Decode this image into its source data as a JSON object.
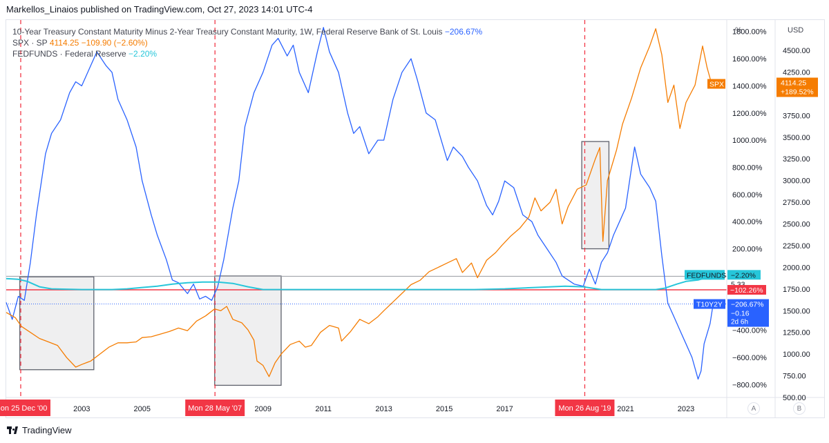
{
  "header": {
    "published_by": "Markellos_Linaios published on TradingView.com, Oct 27, 2023 14:01 UTC-4"
  },
  "legend": [
    {
      "label": "10-Year Treasury Constant Maturity Minus 2-Year Treasury Constant Maturity, 1W, Federal Reserve Bank of St. Louis",
      "value": "−206.67%",
      "color": "#2962ff"
    },
    {
      "label": "SPX · SP",
      "value": "4114.25  −109.90 (−2.60%)",
      "color": "#f57c00"
    },
    {
      "label": "FEDFUNDS · Federal Reserve",
      "value": "−2.20%",
      "color": "#26c6da"
    }
  ],
  "axes": {
    "pct_unit": "%",
    "usd_unit": "USD",
    "scale_a": "A",
    "scale_b": "B"
  },
  "footer": {
    "brand": "TradingView"
  },
  "chart_data": {
    "type": "line",
    "x_range": [
      2000.5,
      2024.35
    ],
    "x_ticks": [
      {
        "x": 2003.0,
        "label": "2003"
      },
      {
        "x": 2005.0,
        "label": "2005"
      },
      {
        "x": 2009.0,
        "label": "2009"
      },
      {
        "x": 2011.0,
        "label": "2011"
      },
      {
        "x": 2013.0,
        "label": "2013"
      },
      {
        "x": 2015.0,
        "label": "2015"
      },
      {
        "x": 2017.0,
        "label": "2017"
      },
      {
        "x": 2021.0,
        "label": "2021"
      },
      {
        "x": 2023.0,
        "label": "2023"
      }
    ],
    "pct_axis": {
      "range": [
        -895,
        1885
      ],
      "ticks": [
        1800,
        1600,
        1400,
        1200,
        1000,
        800,
        600,
        400,
        200,
        -400,
        -600,
        -800
      ],
      "suffix": ".00%"
    },
    "usd_axis": {
      "range": [
        500,
        4850
      ],
      "ticks": [
        4500,
        4250,
        4000,
        3750,
        3500,
        3250,
        3000,
        2750,
        2500,
        2250,
        2000,
        1750,
        1500,
        1250,
        1000,
        750,
        500
      ]
    },
    "date_markers": [
      {
        "x": 2000.98,
        "label": "Mon 25 Dec '00"
      },
      {
        "x": 2007.41,
        "label": "Mon 28 May '07"
      },
      {
        "x": 2019.65,
        "label": "Mon 26 Aug '19"
      }
    ],
    "hline_pct": -102.26,
    "fedfunds_level_pct": -2.2,
    "t10y2y_level_pct": -206.67,
    "highlight_boxes": [
      {
        "x0": 2000.95,
        "x1": 2003.4,
        "y0_usd": 820,
        "y1_usd": 1890
      },
      {
        "x0": 2007.4,
        "x1": 2009.6,
        "y0_usd": 640,
        "y1_usd": 1900
      },
      {
        "x0": 2019.55,
        "x1": 2020.45,
        "y0_pct": 200,
        "y1_pct": 990
      }
    ],
    "series": [
      {
        "name": "10-Year Treasury Constant Maturity Minus 2-Year Treasury Constant Maturity",
        "color": "#2962ff",
        "axis": "pct",
        "points": [
          [
            2000.5,
            -195
          ],
          [
            2000.7,
            -320
          ],
          [
            2000.9,
            -150
          ],
          [
            2001.1,
            -180
          ],
          [
            2001.3,
            100
          ],
          [
            2001.5,
            450
          ],
          [
            2001.8,
            900
          ],
          [
            2002.0,
            1050
          ],
          [
            2002.3,
            1150
          ],
          [
            2002.6,
            1350
          ],
          [
            2002.8,
            1430
          ],
          [
            2003.0,
            1400
          ],
          [
            2003.3,
            1550
          ],
          [
            2003.5,
            1650
          ],
          [
            2003.8,
            1550
          ],
          [
            2004.0,
            1500
          ],
          [
            2004.2,
            1300
          ],
          [
            2004.5,
            1150
          ],
          [
            2004.8,
            950
          ],
          [
            2005.0,
            700
          ],
          [
            2005.3,
            450
          ],
          [
            2005.5,
            300
          ],
          [
            2005.8,
            120
          ],
          [
            2006.0,
            -30
          ],
          [
            2006.2,
            -50
          ],
          [
            2006.5,
            -130
          ],
          [
            2006.7,
            -60
          ],
          [
            2006.9,
            -170
          ],
          [
            2007.1,
            -150
          ],
          [
            2007.3,
            -180
          ],
          [
            2007.5,
            -80
          ],
          [
            2007.7,
            120
          ],
          [
            2008.0,
            500
          ],
          [
            2008.2,
            700
          ],
          [
            2008.4,
            1100
          ],
          [
            2008.7,
            1350
          ],
          [
            2009.0,
            1500
          ],
          [
            2009.3,
            1700
          ],
          [
            2009.5,
            1750
          ],
          [
            2009.8,
            1620
          ],
          [
            2010.0,
            1700
          ],
          [
            2010.2,
            1500
          ],
          [
            2010.5,
            1350
          ],
          [
            2010.8,
            1650
          ],
          [
            2011.0,
            1830
          ],
          [
            2011.2,
            1650
          ],
          [
            2011.5,
            1500
          ],
          [
            2011.8,
            1200
          ],
          [
            2012.0,
            1050
          ],
          [
            2012.2,
            1100
          ],
          [
            2012.5,
            900
          ],
          [
            2012.8,
            1000
          ],
          [
            2013.0,
            1000
          ],
          [
            2013.3,
            1300
          ],
          [
            2013.6,
            1500
          ],
          [
            2013.9,
            1600
          ],
          [
            2014.1,
            1450
          ],
          [
            2014.4,
            1200
          ],
          [
            2014.7,
            1150
          ],
          [
            2014.9,
            1000
          ],
          [
            2015.1,
            850
          ],
          [
            2015.3,
            950
          ],
          [
            2015.6,
            880
          ],
          [
            2015.8,
            800
          ],
          [
            2016.1,
            700
          ],
          [
            2016.4,
            520
          ],
          [
            2016.6,
            450
          ],
          [
            2016.8,
            550
          ],
          [
            2017.0,
            700
          ],
          [
            2017.3,
            650
          ],
          [
            2017.6,
            450
          ],
          [
            2017.9,
            400
          ],
          [
            2018.1,
            300
          ],
          [
            2018.4,
            200
          ],
          [
            2018.7,
            100
          ],
          [
            2018.9,
            0
          ],
          [
            2019.1,
            -30
          ],
          [
            2019.3,
            -60
          ],
          [
            2019.6,
            -75
          ],
          [
            2019.8,
            50
          ],
          [
            2020.0,
            -60
          ],
          [
            2020.2,
            100
          ],
          [
            2020.4,
            170
          ],
          [
            2020.6,
            300
          ],
          [
            2020.8,
            400
          ],
          [
            2021.0,
            500
          ],
          [
            2021.3,
            950
          ],
          [
            2021.5,
            750
          ],
          [
            2021.8,
            650
          ],
          [
            2022.0,
            550
          ],
          [
            2022.2,
            150
          ],
          [
            2022.4,
            -200
          ],
          [
            2022.6,
            -300
          ],
          [
            2022.8,
            -400
          ],
          [
            2023.0,
            -500
          ],
          [
            2023.2,
            -600
          ],
          [
            2023.4,
            -760
          ],
          [
            2023.5,
            -700
          ],
          [
            2023.6,
            -500
          ],
          [
            2023.8,
            -350
          ],
          [
            2023.9,
            -206.67
          ]
        ]
      },
      {
        "name": "SPX",
        "color": "#f57c00",
        "axis": "usd",
        "points": [
          [
            2000.5,
            1480
          ],
          [
            2000.8,
            1420
          ],
          [
            2001.0,
            1320
          ],
          [
            2001.3,
            1250
          ],
          [
            2001.6,
            1180
          ],
          [
            2001.9,
            1140
          ],
          [
            2002.2,
            1100
          ],
          [
            2002.5,
            960
          ],
          [
            2002.8,
            850
          ],
          [
            2003.0,
            880
          ],
          [
            2003.3,
            920
          ],
          [
            2003.6,
            1000
          ],
          [
            2003.9,
            1080
          ],
          [
            2004.2,
            1130
          ],
          [
            2004.5,
            1130
          ],
          [
            2004.8,
            1140
          ],
          [
            2005.0,
            1190
          ],
          [
            2005.3,
            1200
          ],
          [
            2005.6,
            1230
          ],
          [
            2005.9,
            1260
          ],
          [
            2006.2,
            1300
          ],
          [
            2006.5,
            1270
          ],
          [
            2006.8,
            1380
          ],
          [
            2007.1,
            1440
          ],
          [
            2007.4,
            1520
          ],
          [
            2007.6,
            1500
          ],
          [
            2007.8,
            1550
          ],
          [
            2008.0,
            1400
          ],
          [
            2008.3,
            1360
          ],
          [
            2008.5,
            1280
          ],
          [
            2008.7,
            1160
          ],
          [
            2008.8,
            920
          ],
          [
            2009.0,
            870
          ],
          [
            2009.2,
            740
          ],
          [
            2009.4,
            900
          ],
          [
            2009.6,
            1000
          ],
          [
            2009.9,
            1110
          ],
          [
            2010.2,
            1150
          ],
          [
            2010.4,
            1080
          ],
          [
            2010.6,
            1100
          ],
          [
            2010.9,
            1250
          ],
          [
            2011.2,
            1330
          ],
          [
            2011.5,
            1300
          ],
          [
            2011.6,
            1150
          ],
          [
            2011.9,
            1260
          ],
          [
            2012.2,
            1400
          ],
          [
            2012.5,
            1350
          ],
          [
            2012.8,
            1430
          ],
          [
            2013.0,
            1500
          ],
          [
            2013.3,
            1600
          ],
          [
            2013.6,
            1700
          ],
          [
            2013.9,
            1800
          ],
          [
            2014.2,
            1850
          ],
          [
            2014.5,
            1950
          ],
          [
            2014.8,
            2000
          ],
          [
            2015.1,
            2050
          ],
          [
            2015.4,
            2100
          ],
          [
            2015.6,
            1940
          ],
          [
            2015.9,
            2050
          ],
          [
            2016.1,
            1880
          ],
          [
            2016.4,
            2080
          ],
          [
            2016.7,
            2170
          ],
          [
            2016.9,
            2250
          ],
          [
            2017.2,
            2360
          ],
          [
            2017.5,
            2450
          ],
          [
            2017.8,
            2580
          ],
          [
            2018.0,
            2800
          ],
          [
            2018.2,
            2650
          ],
          [
            2018.5,
            2750
          ],
          [
            2018.7,
            2900
          ],
          [
            2018.9,
            2500
          ],
          [
            2019.1,
            2700
          ],
          [
            2019.4,
            2900
          ],
          [
            2019.7,
            2950
          ],
          [
            2020.0,
            3250
          ],
          [
            2020.15,
            3380
          ],
          [
            2020.25,
            2300
          ],
          [
            2020.4,
            3000
          ],
          [
            2020.7,
            3350
          ],
          [
            2020.9,
            3650
          ],
          [
            2021.2,
            3950
          ],
          [
            2021.5,
            4300
          ],
          [
            2021.8,
            4550
          ],
          [
            2022.0,
            4750
          ],
          [
            2022.2,
            4450
          ],
          [
            2022.4,
            3900
          ],
          [
            2022.6,
            4100
          ],
          [
            2022.8,
            3600
          ],
          [
            2023.0,
            3900
          ],
          [
            2023.3,
            4100
          ],
          [
            2023.55,
            4550
          ],
          [
            2023.7,
            4300
          ],
          [
            2023.85,
            4114.25
          ]
        ]
      },
      {
        "name": "FEDFUNDS",
        "color": "#26c6da",
        "axis": "pct",
        "points": [
          [
            2000.5,
            -20
          ],
          [
            2000.9,
            -25
          ],
          [
            2001.2,
            -40
          ],
          [
            2001.6,
            -80
          ],
          [
            2002.0,
            -95
          ],
          [
            2003.0,
            -100
          ],
          [
            2004.0,
            -100
          ],
          [
            2004.5,
            -95
          ],
          [
            2005.0,
            -85
          ],
          [
            2005.5,
            -75
          ],
          [
            2006.0,
            -60
          ],
          [
            2006.5,
            -50
          ],
          [
            2007.0,
            -45
          ],
          [
            2007.5,
            -45
          ],
          [
            2008.0,
            -55
          ],
          [
            2008.5,
            -80
          ],
          [
            2009.0,
            -100
          ],
          [
            2012.0,
            -100
          ],
          [
            2016.0,
            -100
          ],
          [
            2017.0,
            -95
          ],
          [
            2018.0,
            -85
          ],
          [
            2019.0,
            -75
          ],
          [
            2019.6,
            -80
          ],
          [
            2020.2,
            -100
          ],
          [
            2022.0,
            -100
          ],
          [
            2022.3,
            -90
          ],
          [
            2022.7,
            -60
          ],
          [
            2023.0,
            -40
          ],
          [
            2023.4,
            -30
          ],
          [
            2023.85,
            -2.2
          ]
        ]
      }
    ]
  }
}
